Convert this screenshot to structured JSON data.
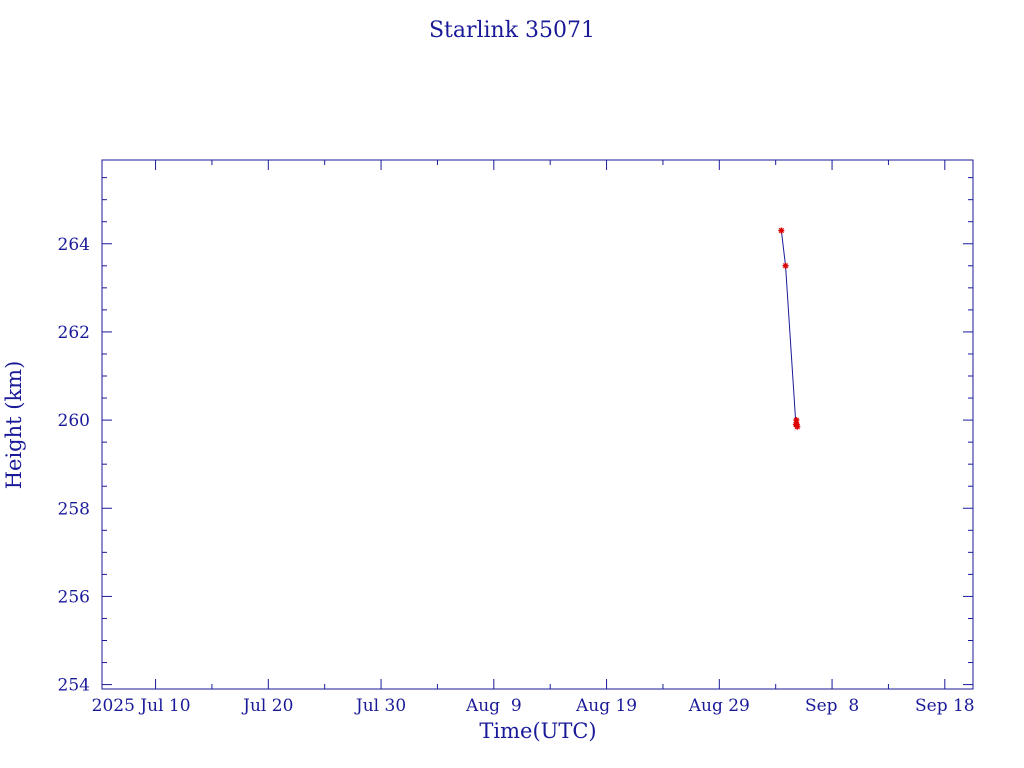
{
  "chart_data": {
    "type": "line",
    "title": "Starlink 35071",
    "xlabel": "Time(UTC)",
    "ylabel": "Height (km)",
    "x_tick_labels": [
      "2025 Jul 10",
      "Jul 20",
      "Jul 30",
      "Aug  9",
      "Aug 19",
      "Aug 29",
      "Sep  8",
      "Sep 18"
    ],
    "x_tick_dates": [
      "2025-07-10",
      "2025-07-20",
      "2025-07-30",
      "2025-08-09",
      "2025-08-19",
      "2025-08-29",
      "2025-09-08",
      "2025-09-18"
    ],
    "xlim": [
      "2025-07-05T06:00",
      "2025-09-20T12:00"
    ],
    "y_ticks": [
      254,
      256,
      258,
      260,
      262,
      264
    ],
    "ylim": [
      253.9,
      265.9
    ],
    "series": [
      {
        "x": [
          "2025-09-03T12:00",
          "2025-09-03T21:00",
          "2025-09-04T19:00",
          "2025-09-04T20:00",
          "2025-09-04T21:00",
          "2025-09-04T22:00"
        ],
        "y": [
          264.3,
          263.5,
          259.9,
          260.0,
          259.9,
          259.85
        ]
      }
    ],
    "colors": {
      "axes": "#1a1a99",
      "line": "#1a1a99",
      "markers": "#dd0000"
    },
    "grid": false,
    "legend": "none"
  }
}
